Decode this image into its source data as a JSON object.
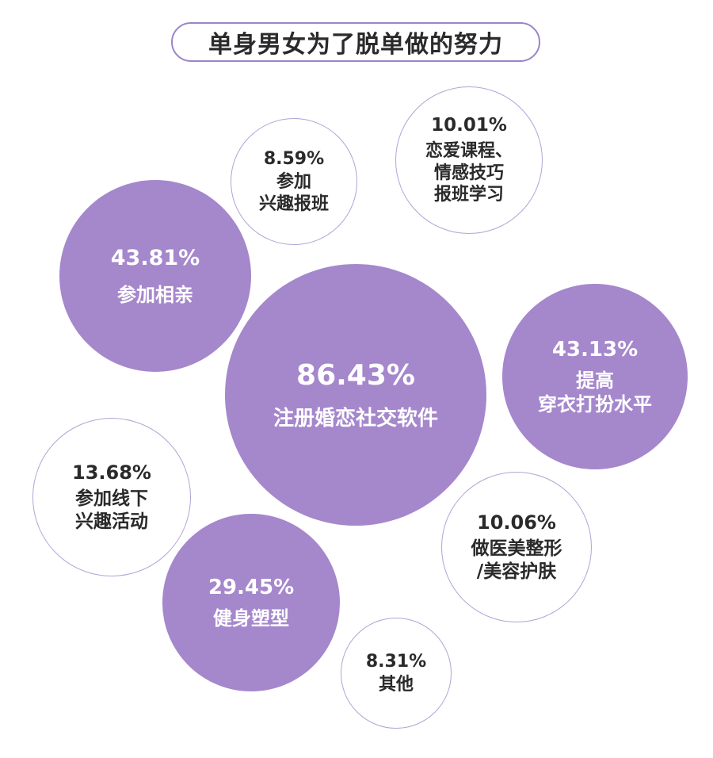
{
  "title": "单身男女为了脱单做的努力",
  "colors": {
    "filled": "#a587cc",
    "outline_border": "#b3a3d6",
    "text_dark": "#2a2a2a"
  },
  "chart_data": {
    "type": "bubble",
    "title": "单身男女为了脱单做的努力",
    "unit": "%",
    "items": [
      {
        "value_label": "86.43%",
        "value": 86.43,
        "label_lines": [
          "注册婚恋社交软件"
        ],
        "style": "filled"
      },
      {
        "value_label": "43.81%",
        "value": 43.81,
        "label_lines": [
          "参加相亲"
        ],
        "style": "filled"
      },
      {
        "value_label": "43.13%",
        "value": 43.13,
        "label_lines": [
          "提高",
          "穿衣打扮水平"
        ],
        "style": "filled"
      },
      {
        "value_label": "29.45%",
        "value": 29.45,
        "label_lines": [
          "健身塑型"
        ],
        "style": "filled"
      },
      {
        "value_label": "13.68%",
        "value": 13.68,
        "label_lines": [
          "参加线下",
          "兴趣活动"
        ],
        "style": "outline"
      },
      {
        "value_label": "10.06%",
        "value": 10.06,
        "label_lines": [
          "做医美整形",
          "/美容护肤"
        ],
        "style": "outline"
      },
      {
        "value_label": "10.01%",
        "value": 10.01,
        "label_lines": [
          "恋爱课程、",
          "情感技巧",
          "报班学习"
        ],
        "style": "outline"
      },
      {
        "value_label": "8.59%",
        "value": 8.59,
        "label_lines": [
          "参加",
          "兴趣报班"
        ],
        "style": "outline"
      },
      {
        "value_label": "8.31%",
        "value": 8.31,
        "label_lines": [
          "其他"
        ],
        "style": "outline"
      }
    ]
  }
}
